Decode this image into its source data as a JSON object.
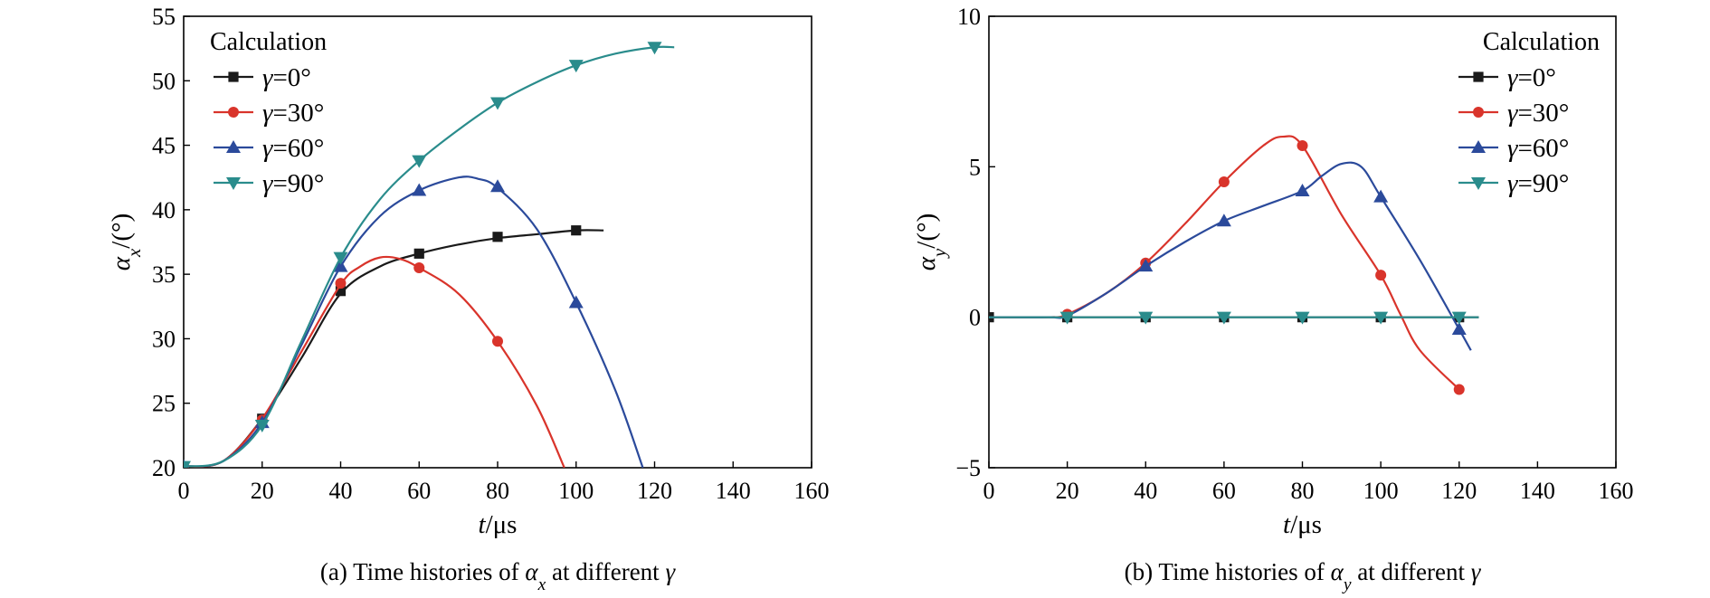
{
  "chart_data": [
    {
      "type": "line",
      "caption": "(a) Time histories of αx at different γ",
      "xlabel": "t/μs",
      "ylabel": "αx/(°)",
      "xlim": [
        0,
        160
      ],
      "ylim": [
        20,
        55
      ],
      "xticks": [
        0,
        20,
        40,
        60,
        80,
        100,
        120,
        140,
        160
      ],
      "yticks": [
        20,
        25,
        30,
        35,
        40,
        45,
        50,
        55
      ],
      "legend_title": "Calculation",
      "legend_position": "top-left",
      "series": [
        {
          "name": "γ=0°",
          "color": "#1a1a1a",
          "marker": "square",
          "curve": [
            [
              0,
              20.1
            ],
            [
              10,
              20.5
            ],
            [
              20,
              23.8
            ],
            [
              30,
              28.5
            ],
            [
              40,
              33.5
            ],
            [
              50,
              35.6
            ],
            [
              60,
              36.6
            ],
            [
              70,
              37.3
            ],
            [
              80,
              37.8
            ],
            [
              90,
              38.1
            ],
            [
              100,
              38.4
            ],
            [
              107,
              38.4
            ]
          ],
          "markers": [
            [
              0,
              20.1
            ],
            [
              20,
              23.8
            ],
            [
              40,
              33.7
            ],
            [
              60,
              36.6
            ],
            [
              80,
              37.9
            ],
            [
              100,
              38.4
            ]
          ]
        },
        {
          "name": "γ=30°",
          "color": "#d9342b",
          "marker": "circle",
          "curve": [
            [
              0,
              20.1
            ],
            [
              10,
              20.5
            ],
            [
              20,
              23.8
            ],
            [
              30,
              29.0
            ],
            [
              40,
              34.2
            ],
            [
              45,
              35.6
            ],
            [
              50,
              36.3
            ],
            [
              55,
              36.2
            ],
            [
              60,
              35.5
            ],
            [
              70,
              33.5
            ],
            [
              80,
              29.8
            ],
            [
              90,
              24.8
            ],
            [
              97,
              20.0
            ]
          ],
          "markers": [
            [
              0,
              20.1
            ],
            [
              20,
              23.7
            ],
            [
              40,
              34.3
            ],
            [
              60,
              35.5
            ],
            [
              80,
              29.8
            ]
          ]
        },
        {
          "name": "γ=60°",
          "color": "#2b4a9b",
          "marker": "triangle-up",
          "curve": [
            [
              0,
              20.1
            ],
            [
              10,
              20.5
            ],
            [
              20,
              23.5
            ],
            [
              30,
              29.5
            ],
            [
              40,
              35.6
            ],
            [
              50,
              39.5
            ],
            [
              60,
              41.5
            ],
            [
              70,
              42.5
            ],
            [
              75,
              42.4
            ],
            [
              80,
              41.7
            ],
            [
              90,
              38.5
            ],
            [
              100,
              32.8
            ],
            [
              110,
              26.0
            ],
            [
              117,
              20.0
            ]
          ],
          "markers": [
            [
              0,
              20.1
            ],
            [
              20,
              23.5
            ],
            [
              40,
              35.6
            ],
            [
              60,
              41.5
            ],
            [
              80,
              41.8
            ],
            [
              100,
              32.8
            ]
          ]
        },
        {
          "name": "γ=90°",
          "color": "#2a8c8c",
          "marker": "triangle-down",
          "curve": [
            [
              0,
              20.1
            ],
            [
              10,
              20.5
            ],
            [
              20,
              23.3
            ],
            [
              30,
              29.8
            ],
            [
              40,
              36.3
            ],
            [
              50,
              40.8
            ],
            [
              60,
              43.8
            ],
            [
              70,
              46.2
            ],
            [
              80,
              48.3
            ],
            [
              90,
              49.9
            ],
            [
              100,
              51.2
            ],
            [
              110,
              52.1
            ],
            [
              120,
              52.6
            ],
            [
              125,
              52.6
            ]
          ],
          "markers": [
            [
              0,
              20.1
            ],
            [
              20,
              23.3
            ],
            [
              40,
              36.3
            ],
            [
              60,
              43.8
            ],
            [
              80,
              48.3
            ],
            [
              100,
              51.2
            ],
            [
              120,
              52.6
            ]
          ]
        }
      ]
    },
    {
      "type": "line",
      "caption": "(b) Time histories of αy at different γ",
      "xlabel": "t/μs",
      "ylabel": "αy/(°)",
      "xlim": [
        0,
        160
      ],
      "ylim": [
        -5,
        10
      ],
      "xticks": [
        0,
        20,
        40,
        60,
        80,
        100,
        120,
        140,
        160
      ],
      "yticks": [
        -5,
        0,
        5,
        10
      ],
      "ytick_labels": [
        "−5",
        "0",
        "5",
        "10"
      ],
      "legend_title": "Calculation",
      "legend_position": "top-right",
      "series": [
        {
          "name": "γ=0°",
          "color": "#1a1a1a",
          "marker": "square",
          "curve": [
            [
              0,
              0
            ],
            [
              125,
              0
            ]
          ],
          "markers": [
            [
              0,
              0
            ],
            [
              20,
              0
            ],
            [
              40,
              0
            ],
            [
              60,
              0
            ],
            [
              80,
              0
            ],
            [
              100,
              0
            ],
            [
              120,
              0
            ]
          ]
        },
        {
          "name": "γ=30°",
          "color": "#d9342b",
          "marker": "circle",
          "curve": [
            [
              0,
              0
            ],
            [
              15,
              0
            ],
            [
              20,
              0.1
            ],
            [
              30,
              0.8
            ],
            [
              40,
              1.8
            ],
            [
              50,
              3.1
            ],
            [
              60,
              4.5
            ],
            [
              70,
              5.7
            ],
            [
              75,
              6.0
            ],
            [
              80,
              5.7
            ],
            [
              90,
              3.4
            ],
            [
              100,
              1.4
            ],
            [
              105,
              0.1
            ],
            [
              110,
              -1.1
            ],
            [
              120,
              -2.4
            ]
          ],
          "markers": [
            [
              20,
              0.1
            ],
            [
              40,
              1.8
            ],
            [
              60,
              4.5
            ],
            [
              80,
              5.7
            ],
            [
              100,
              1.4
            ],
            [
              120,
              -2.4
            ]
          ]
        },
        {
          "name": "γ=60°",
          "color": "#2b4a9b",
          "marker": "triangle-up",
          "curve": [
            [
              0,
              0
            ],
            [
              15,
              0
            ],
            [
              20,
              0.05
            ],
            [
              30,
              0.8
            ],
            [
              40,
              1.7
            ],
            [
              50,
              2.5
            ],
            [
              60,
              3.2
            ],
            [
              70,
              3.7
            ],
            [
              80,
              4.2
            ],
            [
              85,
              4.7
            ],
            [
              90,
              5.1
            ],
            [
              95,
              5.0
            ],
            [
              100,
              4.0
            ],
            [
              110,
              1.9
            ],
            [
              120,
              -0.4
            ],
            [
              123,
              -1.1
            ]
          ],
          "markers": [
            [
              40,
              1.7
            ],
            [
              60,
              3.2
            ],
            [
              80,
              4.2
            ],
            [
              100,
              4.0
            ],
            [
              120,
              -0.4
            ]
          ]
        },
        {
          "name": "γ=90°",
          "color": "#2a8c8c",
          "marker": "triangle-down",
          "curve": [
            [
              0,
              0
            ],
            [
              125,
              0
            ]
          ],
          "markers": [
            [
              20,
              0
            ],
            [
              40,
              0
            ],
            [
              60,
              0
            ],
            [
              80,
              0
            ],
            [
              100,
              0
            ],
            [
              120,
              0
            ]
          ]
        }
      ]
    }
  ]
}
